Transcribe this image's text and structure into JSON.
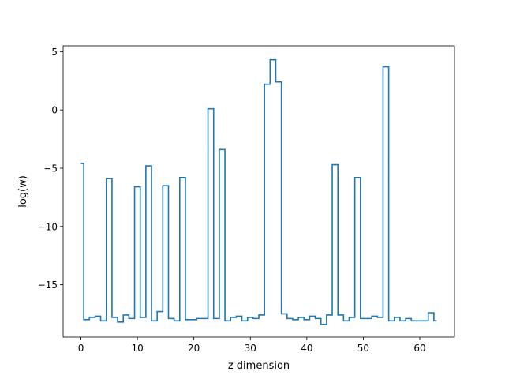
{
  "chart_data": {
    "type": "line",
    "drawstyle": "steps-mid",
    "xlabel": "z dimension",
    "ylabel": "log(w)",
    "xlim": [
      -3.15,
      66.15
    ],
    "ylim": [
      -19.5,
      5.5
    ],
    "xticks": [
      0,
      10,
      20,
      30,
      40,
      50,
      60
    ],
    "xtick_labels": [
      "0",
      "10",
      "20",
      "30",
      "40",
      "50",
      "60"
    ],
    "yticks": [
      5,
      0,
      -5,
      -10,
      -15
    ],
    "ytick_labels": [
      "5",
      "0",
      "−5",
      "−10",
      "−15"
    ],
    "grid": false,
    "color": "#1f77b4",
    "series": [
      {
        "x": [
          0,
          1,
          2,
          3,
          4,
          5,
          6,
          7,
          8,
          9,
          10,
          11,
          12,
          13,
          14,
          15,
          16,
          17,
          18,
          19,
          20,
          21,
          22,
          23,
          24,
          25,
          26,
          27,
          28,
          29,
          30,
          31,
          32,
          33,
          34,
          35,
          36,
          37,
          38,
          39,
          40,
          41,
          42,
          43,
          44,
          45,
          46,
          47,
          48,
          49,
          50,
          51,
          52,
          53,
          54,
          55,
          56,
          57,
          58,
          59,
          60,
          61,
          62,
          63
        ],
        "values": [
          -4.6,
          -18.0,
          -17.8,
          -17.7,
          -18.1,
          -5.9,
          -17.8,
          -18.2,
          -17.6,
          -17.9,
          -6.6,
          -17.8,
          -4.8,
          -18.1,
          -17.3,
          -6.5,
          -17.9,
          -18.1,
          -5.8,
          -18.0,
          -18.0,
          -17.9,
          -17.9,
          0.1,
          -17.9,
          -3.4,
          -18.1,
          -17.8,
          -17.7,
          -18.1,
          -17.8,
          -17.9,
          -17.6,
          2.2,
          4.3,
          2.4,
          -17.5,
          -17.9,
          -18.0,
          -17.8,
          -18.0,
          -17.7,
          -17.9,
          -18.4,
          -17.6,
          -4.7,
          -17.6,
          -18.1,
          -17.8,
          -5.8,
          -17.9,
          -17.9,
          -17.7,
          -17.8,
          3.7,
          -18.1,
          -17.8,
          -18.1,
          -17.9,
          -18.1,
          -18.1,
          -18.1,
          -17.4,
          -18.1
        ]
      }
    ]
  }
}
